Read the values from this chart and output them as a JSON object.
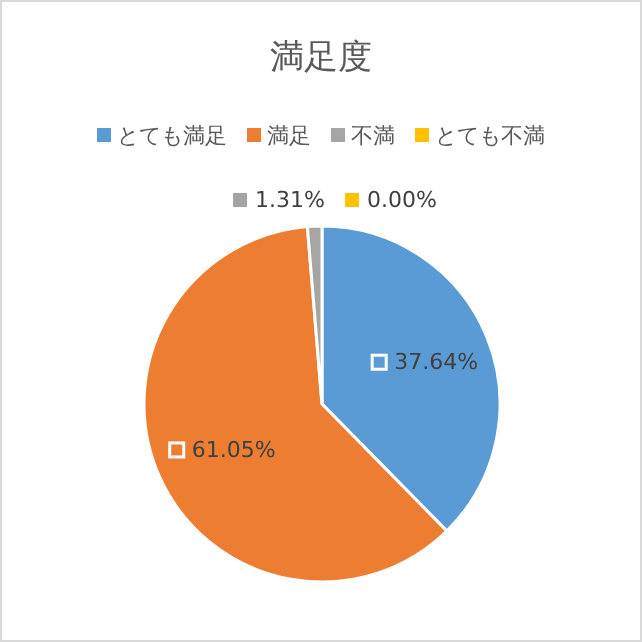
{
  "chart_data": {
    "type": "pie",
    "title": "満足度",
    "categories": [
      "とても満足",
      "満足",
      "不満",
      "とても不満"
    ],
    "values": [
      37.64,
      61.05,
      1.31,
      0.0
    ],
    "colors": [
      "#5b9bd5",
      "#ed7d31",
      "#a5a5a5",
      "#ffc000"
    ],
    "value_labels": [
      "37.64%",
      "61.05%",
      "1.31%",
      "0.00%"
    ],
    "legend": "top"
  }
}
